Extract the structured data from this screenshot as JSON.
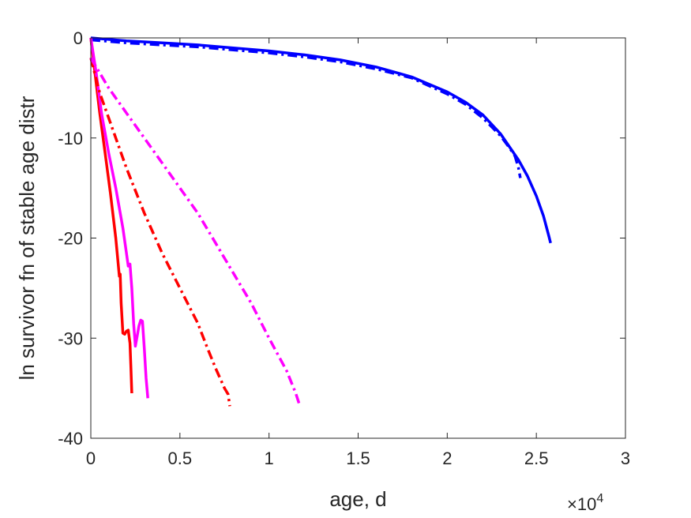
{
  "chart_data": {
    "type": "line",
    "xlabel": "age, d",
    "ylabel": "ln survivor fn of stable age distr",
    "xlim": [
      0,
      30000
    ],
    "ylim": [
      -40,
      0
    ],
    "x_ticks": [
      0,
      5000,
      10000,
      15000,
      20000,
      25000,
      30000
    ],
    "x_tick_labels": [
      "0",
      "0.5",
      "1",
      "1.5",
      "2",
      "2.5",
      "3"
    ],
    "x_exponent_label": "×10",
    "x_exponent_power": "4",
    "y_ticks": [
      0,
      -10,
      -20,
      -30,
      -40
    ],
    "y_tick_labels": [
      "0",
      "-10",
      "-20",
      "-30",
      "-40"
    ],
    "grid": false,
    "colors": {
      "blue": "#0000ff",
      "red": "#ff0000",
      "magenta": "#ff00ff",
      "axis": "#262626"
    },
    "series": [
      {
        "color": "#0000ff",
        "style": "solid",
        "x": [
          0,
          2000,
          4000,
          6000,
          8000,
          10000,
          12000,
          14000,
          16000,
          18000,
          20000,
          21000,
          22000,
          23000,
          24000,
          24500,
          25000,
          25400,
          25700,
          25800
        ],
        "y": [
          0,
          -0.3,
          -0.5,
          -0.7,
          -1.0,
          -1.3,
          -1.7,
          -2.2,
          -2.9,
          -3.9,
          -5.4,
          -6.4,
          -7.7,
          -9.6,
          -12.2,
          -13.8,
          -15.8,
          -17.8,
          -19.8,
          -20.5
        ]
      },
      {
        "color": "#0000ff",
        "style": "dashdot",
        "x": [
          0,
          2000,
          4000,
          6000,
          8000,
          10000,
          12000,
          14000,
          16000,
          18000,
          20000,
          21000,
          22000,
          23000,
          23500,
          23800,
          24000,
          24100
        ],
        "y": [
          -0.2,
          -0.5,
          -0.7,
          -0.9,
          -1.2,
          -1.5,
          -1.9,
          -2.4,
          -3.1,
          -4.0,
          -5.6,
          -6.6,
          -8.0,
          -9.8,
          -11.0,
          -11.8,
          -13.0,
          -14.0
        ]
      },
      {
        "color": "#ff0000",
        "style": "solid",
        "x": [
          0,
          200,
          500,
          800,
          1100,
          1400,
          1600,
          1650,
          1700,
          1800,
          1900,
          2000,
          2100,
          2200,
          2250,
          2300
        ],
        "y": [
          0,
          -3,
          -7.5,
          -11.5,
          -15.5,
          -20,
          -23.8,
          -23.6,
          -26.5,
          -29.5,
          -29.6,
          -29.3,
          -29.2,
          -30.5,
          -33,
          -35.5
        ]
      },
      {
        "color": "#ff00ff",
        "style": "solid",
        "x": [
          0,
          300,
          600,
          1000,
          1400,
          1800,
          2000,
          2100,
          2200,
          2300,
          2400,
          2500,
          2600,
          2700,
          2800,
          2900,
          3000,
          3100,
          3200
        ],
        "y": [
          0,
          -3.5,
          -7.5,
          -11.5,
          -15,
          -19,
          -21.5,
          -22.8,
          -22.6,
          -25,
          -28.5,
          -30.8,
          -29.8,
          -28.8,
          -28.2,
          -28.3,
          -31,
          -34,
          -36
        ]
      },
      {
        "color": "#ff0000",
        "style": "dashdot",
        "x": [
          0,
          500,
          1000,
          2000,
          3000,
          4000,
          5000,
          6000,
          6500,
          7000,
          7500,
          7700,
          7800
        ],
        "y": [
          -2,
          -5.5,
          -8,
          -13,
          -17.5,
          -21.5,
          -25,
          -28.5,
          -30.8,
          -33,
          -35,
          -35.6,
          -36.8
        ]
      },
      {
        "color": "#ff00ff",
        "style": "dashdot",
        "x": [
          0,
          1000,
          2000,
          4000,
          6000,
          7000,
          8000,
          9000,
          10000,
          11000,
          11500,
          11700
        ],
        "y": [
          -2,
          -5,
          -7.5,
          -12.5,
          -17.5,
          -20.5,
          -23.5,
          -26.5,
          -30,
          -33.3,
          -35.5,
          -36.6
        ]
      }
    ]
  }
}
